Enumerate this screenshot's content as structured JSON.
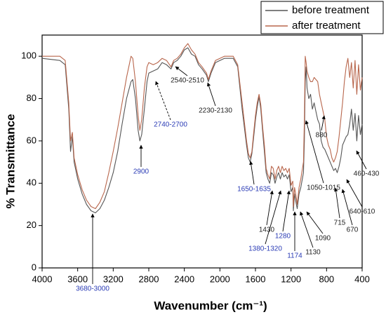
{
  "chart_data": {
    "type": "line",
    "x_label": "Wavenumber (cm⁻¹)",
    "y_label": "% Transmittance",
    "xlim": [
      4000,
      400
    ],
    "ylim": [
      0,
      110
    ],
    "xticks": [
      4000,
      3600,
      3200,
      2800,
      2400,
      2000,
      1600,
      1200,
      800,
      400
    ],
    "yticks": [
      0,
      20,
      40,
      60,
      80,
      100
    ],
    "legend": "top-right",
    "x": [
      4000,
      3800,
      3740,
      3700,
      3680,
      3660,
      3640,
      3600,
      3550,
      3500,
      3450,
      3400,
      3350,
      3300,
      3250,
      3200,
      3150,
      3100,
      3050,
      3000,
      2980,
      2950,
      2920,
      2900,
      2880,
      2850,
      2820,
      2800,
      2750,
      2700,
      2650,
      2600,
      2550,
      2520,
      2480,
      2440,
      2400,
      2360,
      2320,
      2280,
      2240,
      2200,
      2150,
      2130,
      2100,
      2050,
      2000,
      1950,
      1900,
      1850,
      1800,
      1750,
      1700,
      1680,
      1660,
      1640,
      1620,
      1600,
      1580,
      1560,
      1540,
      1520,
      1500,
      1480,
      1460,
      1440,
      1420,
      1400,
      1380,
      1360,
      1340,
      1320,
      1300,
      1280,
      1260,
      1240,
      1220,
      1200,
      1180,
      1174,
      1160,
      1140,
      1130,
      1110,
      1090,
      1060,
      1050,
      1040,
      1030,
      1020,
      1000,
      980,
      960,
      940,
      920,
      900,
      880,
      860,
      840,
      820,
      800,
      780,
      760,
      740,
      720,
      700,
      680,
      660,
      640,
      620,
      600,
      580,
      560,
      540,
      520,
      500,
      480,
      460,
      440,
      420,
      400
    ],
    "series": [
      {
        "name": "before treatment",
        "color": "#555555",
        "values": [
          99,
          98,
          96,
          75,
          55,
          62,
          50,
          42,
          35,
          30,
          27,
          26,
          28,
          32,
          38,
          45,
          55,
          68,
          80,
          88,
          89,
          80,
          65,
          60,
          63,
          75,
          88,
          92,
          93,
          94,
          97,
          96,
          94,
          97,
          98,
          100,
          103,
          104,
          101,
          100,
          96,
          94,
          91,
          88,
          92,
          97,
          98,
          99,
          99,
          99,
          95,
          75,
          58,
          52,
          50,
          54,
          62,
          70,
          76,
          81,
          75,
          65,
          55,
          45,
          42,
          40,
          45,
          44,
          40,
          43,
          45,
          42,
          45,
          43,
          44,
          42,
          44,
          36,
          38,
          27,
          35,
          30,
          28,
          35,
          38,
          45,
          60,
          88,
          95,
          85,
          80,
          82,
          75,
          78,
          74,
          70,
          68,
          60,
          57,
          56,
          54,
          52,
          50,
          48,
          46,
          47,
          45,
          48,
          52,
          58,
          60,
          62,
          63,
          68,
          75,
          65,
          73,
          60,
          72,
          63,
          68
        ]
      },
      {
        "name": "after treatment",
        "color": "#b8664c",
        "values": [
          100,
          100,
          98,
          78,
          60,
          64,
          52,
          44,
          37,
          32,
          29,
          28,
          31,
          36,
          45,
          55,
          66,
          78,
          90,
          100,
          99,
          88,
          72,
          65,
          70,
          85,
          95,
          97,
          96,
          97,
          99,
          98,
          95,
          98,
          99,
          101,
          104,
          106,
          103,
          101,
          97,
          95,
          92,
          89,
          93,
          98,
          99,
          100,
          100,
          100,
          96,
          78,
          60,
          54,
          52,
          55,
          64,
          72,
          78,
          82,
          77,
          67,
          58,
          47,
          44,
          42,
          48,
          47,
          42,
          46,
          48,
          45,
          48,
          46,
          47,
          45,
          47,
          39,
          41,
          29,
          38,
          33,
          30,
          38,
          42,
          50,
          70,
          100,
          97,
          93,
          90,
          88,
          88,
          90,
          89,
          88,
          82,
          78,
          74,
          70,
          62,
          58,
          56,
          52,
          50,
          52,
          55,
          62,
          70,
          78,
          88,
          95,
          99,
          90,
          97,
          85,
          98,
          82,
          96,
          84,
          90
        ]
      }
    ],
    "annotations": [
      {
        "text": "3680-3000",
        "color": "#2a3bb5"
      },
      {
        "text": "2900",
        "color": "#2a3bb5"
      },
      {
        "text": "2740-2700",
        "color": "#2a3bb5"
      },
      {
        "text": "2540-2510",
        "color": "#222222"
      },
      {
        "text": "2230-2130",
        "color": "#222222"
      },
      {
        "text": "1650-1635",
        "color": "#2a3bb5"
      },
      {
        "text": "1430",
        "color": "#222222"
      },
      {
        "text": "1380-1320",
        "color": "#2a3bb5"
      },
      {
        "text": "1280",
        "color": "#2a3bb5"
      },
      {
        "text": "1174",
        "color": "#2a3bb5"
      },
      {
        "text": "1130",
        "color": "#222222"
      },
      {
        "text": "1090",
        "color": "#222222"
      },
      {
        "text": "1050-1015",
        "color": "#222222"
      },
      {
        "text": "880",
        "color": "#222222"
      },
      {
        "text": "715",
        "color": "#222222"
      },
      {
        "text": "670",
        "color": "#222222"
      },
      {
        "text": "640-610",
        "color": "#222222"
      },
      {
        "text": "460-430",
        "color": "#222222"
      }
    ]
  }
}
